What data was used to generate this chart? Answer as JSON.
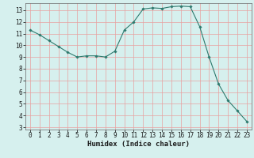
{
  "x": [
    0,
    1,
    2,
    3,
    4,
    5,
    6,
    7,
    8,
    9,
    10,
    11,
    12,
    13,
    14,
    15,
    16,
    17,
    18,
    19,
    20,
    21,
    22,
    23
  ],
  "y": [
    11.3,
    10.9,
    10.4,
    9.9,
    9.4,
    9.0,
    9.1,
    9.1,
    9.0,
    9.5,
    11.3,
    12.0,
    13.1,
    13.2,
    13.15,
    13.3,
    13.35,
    13.3,
    11.6,
    9.0,
    6.7,
    5.3,
    4.4,
    3.5
  ],
  "line_color": "#2d7a6e",
  "marker": "D",
  "marker_size": 1.8,
  "bg_color": "#d6f0ee",
  "grid_color_major": "#e8a0a0",
  "grid_color_minor": "#e8d8d8",
  "xlabel": "Humidex (Indice chaleur)",
  "xlim": [
    -0.5,
    23.5
  ],
  "ylim": [
    2.8,
    13.6
  ],
  "xticks": [
    0,
    1,
    2,
    3,
    4,
    5,
    6,
    7,
    8,
    9,
    10,
    11,
    12,
    13,
    14,
    15,
    16,
    17,
    18,
    19,
    20,
    21,
    22,
    23
  ],
  "yticks": [
    3,
    4,
    5,
    6,
    7,
    8,
    9,
    10,
    11,
    12,
    13
  ],
  "xlabel_fontsize": 6.5,
  "tick_fontsize": 5.5
}
